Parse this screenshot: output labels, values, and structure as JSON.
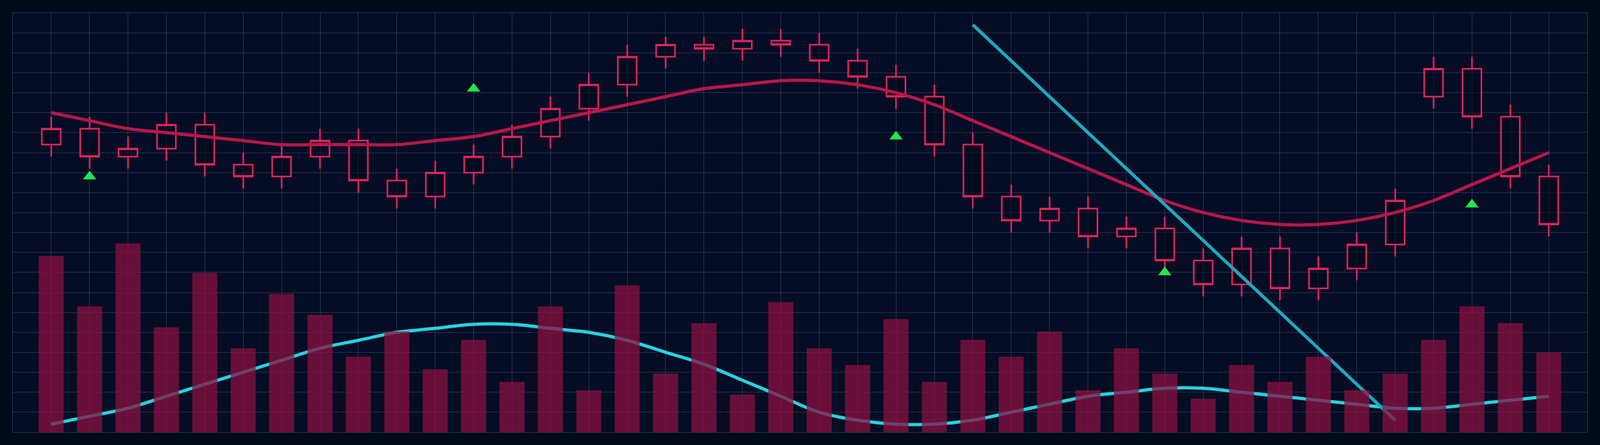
{
  "chart_data": {
    "type": "candlestick",
    "x": [
      1,
      2,
      3,
      4,
      5,
      6,
      7,
      8,
      9,
      10,
      11,
      12,
      13,
      14,
      15,
      16,
      17,
      18,
      19,
      20,
      21,
      22,
      23,
      24,
      25,
      26,
      27,
      28,
      29,
      30,
      31,
      32,
      33,
      34,
      35,
      36,
      37,
      38,
      39,
      40
    ],
    "open": [
      72,
      76,
      69,
      71,
      77,
      67,
      64,
      69,
      73,
      63,
      59,
      65,
      69,
      74,
      81,
      87,
      94,
      97,
      96,
      98,
      97,
      93,
      89,
      84,
      72,
      59,
      53,
      56,
      49,
      51,
      43,
      37,
      46,
      36,
      41,
      47,
      84,
      91,
      79,
      64
    ],
    "high": [
      79,
      79,
      74,
      80,
      80,
      70,
      72,
      76,
      76,
      66,
      68,
      72,
      77,
      84,
      90,
      97,
      99,
      99,
      101,
      101,
      100,
      96,
      92,
      87,
      75,
      62,
      59,
      59,
      54,
      54,
      46,
      49,
      49,
      44,
      50,
      61,
      94,
      94,
      82,
      67
    ],
    "low": [
      69,
      66,
      66,
      68,
      64,
      61,
      61,
      66,
      60,
      56,
      56,
      62,
      66,
      71,
      78,
      84,
      91,
      93,
      93,
      94,
      90,
      86,
      81,
      69,
      56,
      50,
      50,
      46,
      46,
      40,
      34,
      34,
      33,
      33,
      38,
      44,
      81,
      76,
      61,
      49
    ],
    "close": [
      76,
      69,
      71,
      77,
      67,
      64,
      69,
      73,
      63,
      59,
      65,
      69,
      74,
      81,
      87,
      94,
      97,
      96,
      98,
      97,
      93,
      89,
      84,
      72,
      59,
      53,
      56,
      49,
      51,
      43,
      37,
      46,
      36,
      41,
      47,
      58,
      91,
      79,
      64,
      52
    ],
    "color": "#e0245e",
    "series": [
      {
        "type": "bar",
        "axis": "y2",
        "color": "#8a1040",
        "values": [
          42,
          30,
          45,
          25,
          38,
          20,
          33,
          28,
          18,
          24,
          15,
          22,
          12,
          30,
          10,
          35,
          14,
          26,
          9,
          31,
          20,
          16,
          27,
          12,
          22,
          18,
          24,
          10,
          20,
          14,
          8,
          16,
          12,
          18,
          10,
          14,
          22,
          30,
          26,
          19
        ]
      },
      {
        "type": "line",
        "line_style": "solid",
        "color": "#b8174a",
        "values": [
          80,
          78,
          76,
          75,
          74,
          73,
          72,
          72,
          72,
          72,
          73,
          74,
          76,
          78,
          80,
          82,
          84,
          86,
          87,
          88,
          88,
          87,
          85,
          82,
          78,
          74,
          70,
          66,
          62,
          58,
          55,
          53,
          52,
          52,
          53,
          55,
          58,
          62,
          66,
          70
        ]
      },
      {
        "type": "line",
        "line_style": "solid",
        "color": "#27d3e0",
        "values": [
          2,
          4,
          6,
          9,
          12,
          15,
          18,
          21,
          23,
          25,
          26,
          27,
          27,
          26,
          25,
          23,
          20,
          17,
          13,
          9,
          5,
          3,
          2,
          2,
          3,
          5,
          7,
          9,
          10,
          11,
          11,
          10,
          9,
          8,
          7,
          6,
          6,
          7,
          8,
          9
        ]
      },
      {
        "type": "line",
        "line_style": "solid",
        "color": "#1fa9bd",
        "values": [
          null,
          null,
          null,
          null,
          null,
          null,
          null,
          null,
          null,
          null,
          null,
          null,
          null,
          null,
          null,
          null,
          null,
          null,
          null,
          null,
          null,
          null,
          null,
          null,
          102,
          93,
          84,
          75,
          66,
          57,
          48,
          39,
          30,
          21,
          12,
          3,
          null,
          null,
          null,
          null
        ]
      },
      {
        "type": "scatter",
        "marker": "triangle-up",
        "color": "#22e84a",
        "values": [
          null,
          64,
          null,
          null,
          null,
          null,
          null,
          null,
          null,
          null,
          null,
          86,
          null,
          null,
          null,
          null,
          null,
          null,
          null,
          null,
          null,
          null,
          74,
          null,
          null,
          null,
          null,
          null,
          null,
          40,
          null,
          null,
          null,
          null,
          null,
          null,
          null,
          57,
          null,
          null
        ]
      }
    ],
    "xlim": [
      0,
      41
    ],
    "xticks": [
      0,
      1,
      2,
      3,
      4,
      5,
      6,
      7,
      8,
      9,
      10,
      11,
      12,
      13,
      14,
      15,
      16,
      17,
      18,
      19,
      20,
      21,
      22,
      23,
      24,
      25,
      26,
      27,
      28,
      29,
      30,
      31,
      32,
      33,
      34,
      35,
      36,
      37,
      38,
      39,
      40,
      41
    ],
    "ylim": [
      0,
      105
    ],
    "yticks": [
      0,
      5,
      10,
      15,
      20,
      25,
      30,
      35,
      40,
      45,
      50,
      55,
      60,
      65,
      70,
      75,
      80,
      85,
      90,
      95,
      100,
      105
    ],
    "y2lim": [
      0,
      100
    ],
    "y2ticks": [
      0,
      100
    ],
    "grid": true,
    "tick_labels": false
  }
}
